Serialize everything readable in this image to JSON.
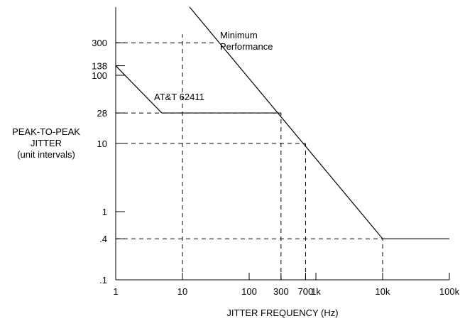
{
  "chart_data": {
    "type": "line",
    "title": "",
    "xlabel": "JITTER FREQUENCY  (Hz)",
    "ylabel_lines": [
      "PEAK-TO-PEAK",
      "JITTER",
      "(unit intervals)"
    ],
    "x_scale": "log",
    "y_scale": "log",
    "xlim": [
      1,
      100000
    ],
    "ylim": [
      0.1,
      1000
    ],
    "grid": false,
    "x_ticks": [
      {
        "value": 1,
        "label": "1"
      },
      {
        "value": 10,
        "label": "10"
      },
      {
        "value": 100,
        "label": "100"
      },
      {
        "value": 300,
        "label": "300"
      },
      {
        "value": 700,
        "label": "700"
      },
      {
        "value": 1000,
        "label": "1k"
      },
      {
        "value": 10000,
        "label": "10k"
      },
      {
        "value": 100000,
        "label": "100k"
      }
    ],
    "y_ticks": [
      {
        "value": 0.1,
        "label": ".1"
      },
      {
        "value": 0.4,
        "label": ".4"
      },
      {
        "value": 1,
        "label": "1"
      },
      {
        "value": 10,
        "label": "10"
      },
      {
        "value": 28,
        "label": "28"
      },
      {
        "value": 100,
        "label": "100"
      },
      {
        "value": 138,
        "label": "138"
      },
      {
        "value": 300,
        "label": "300"
      }
    ],
    "series": [
      {
        "name": "Minimum Performance",
        "label_lines": [
          "Minimum",
          "Performance"
        ],
        "x": [
          12.8,
          10000,
          100000
        ],
        "y": [
          1000,
          0.4,
          0.4
        ],
        "style": "solid"
      },
      {
        "name": "AT&T 62411",
        "x": [
          1,
          4.9,
          300
        ],
        "y": [
          138,
          28,
          28
        ],
        "style": "solid"
      }
    ],
    "guides": [
      {
        "orientation": "horizontal",
        "value": 300,
        "from": 1,
        "to": 30
      },
      {
        "orientation": "horizontal",
        "value": 138,
        "from": 1,
        "to": 1.1
      },
      {
        "orientation": "horizontal",
        "value": 28,
        "from": 1,
        "to": 300
      },
      {
        "orientation": "horizontal",
        "value": 10,
        "from": 1,
        "to": 700
      },
      {
        "orientation": "horizontal",
        "value": 0.4,
        "from": 1,
        "to": 10000
      },
      {
        "orientation": "vertical",
        "value": 10,
        "from": 0.1,
        "to": 400
      },
      {
        "orientation": "vertical",
        "value": 300,
        "from": 0.1,
        "to": 28
      },
      {
        "orientation": "vertical",
        "value": 700,
        "from": 0.1,
        "to": 10
      },
      {
        "orientation": "vertical",
        "value": 10000,
        "from": 0.1,
        "to": 0.4
      }
    ]
  }
}
